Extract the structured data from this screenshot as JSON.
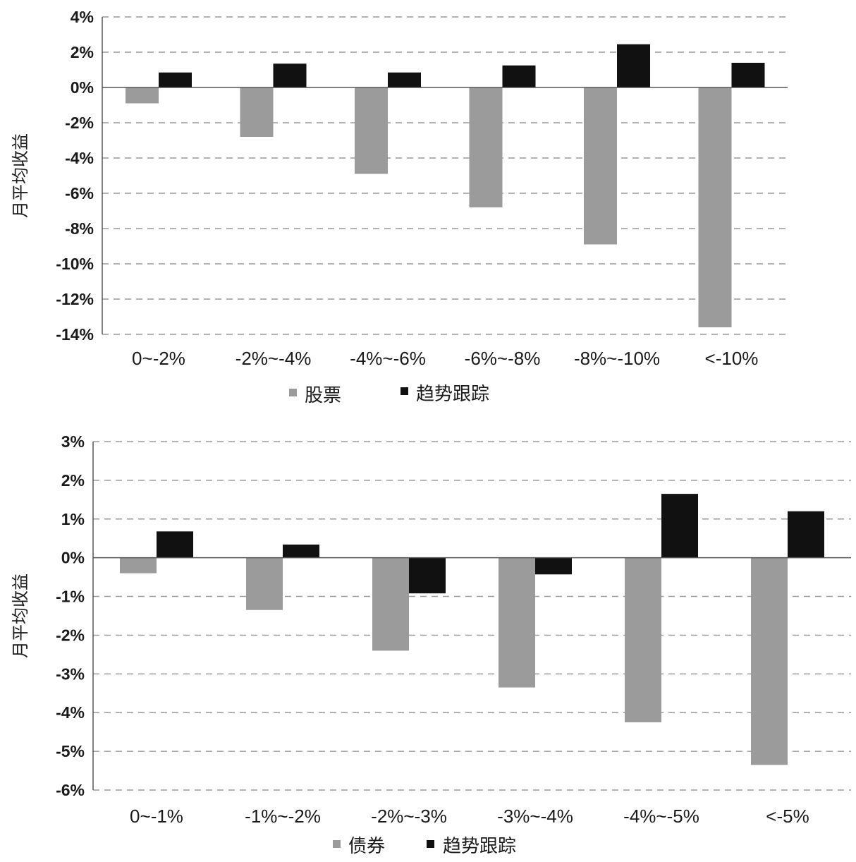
{
  "chart_data": [
    {
      "type": "bar",
      "ylabel": "月平均收益",
      "ylim": [
        -14,
        4
      ],
      "yticks": [
        "4%",
        "2%",
        "0%",
        "-2%",
        "-4%",
        "-6%",
        "-8%",
        "-10%",
        "-12%",
        "-14%"
      ],
      "categories": [
        "0~-2%",
        "-2%~-4%",
        "-4%~-6%",
        "-6%~-8%",
        "-8%~-10%",
        "<-10%"
      ],
      "series": [
        {
          "name": "股票",
          "color": "#9b9b9b",
          "values": [
            -0.9,
            -2.8,
            -4.9,
            -6.8,
            -8.9,
            -13.6
          ]
        },
        {
          "name": "趋势跟踪",
          "color": "#111111",
          "values": [
            0.85,
            1.35,
            0.85,
            1.25,
            2.45,
            1.4
          ]
        }
      ],
      "legend": "bottom",
      "grid": true
    },
    {
      "type": "bar",
      "ylabel": "月平均收益",
      "ylim": [
        -6,
        3
      ],
      "yticks": [
        "3%",
        "2%",
        "1%",
        "0%",
        "-1%",
        "-2%",
        "-3%",
        "-4%",
        "-5%",
        "-6%"
      ],
      "categories": [
        "0~-1%",
        "-1%~-2%",
        "-2%~-3%",
        "-3%~-4%",
        "-4%~-5%",
        "<-5%"
      ],
      "series": [
        {
          "name": "债券",
          "color": "#9b9b9b",
          "values": [
            -0.4,
            -1.35,
            -2.4,
            -3.35,
            -4.25,
            -5.35
          ]
        },
        {
          "name": "趋势跟踪",
          "color": "#111111",
          "values": [
            0.68,
            0.34,
            -0.92,
            -0.43,
            1.65,
            1.2
          ]
        }
      ],
      "legend": "bottom",
      "grid": true
    }
  ]
}
